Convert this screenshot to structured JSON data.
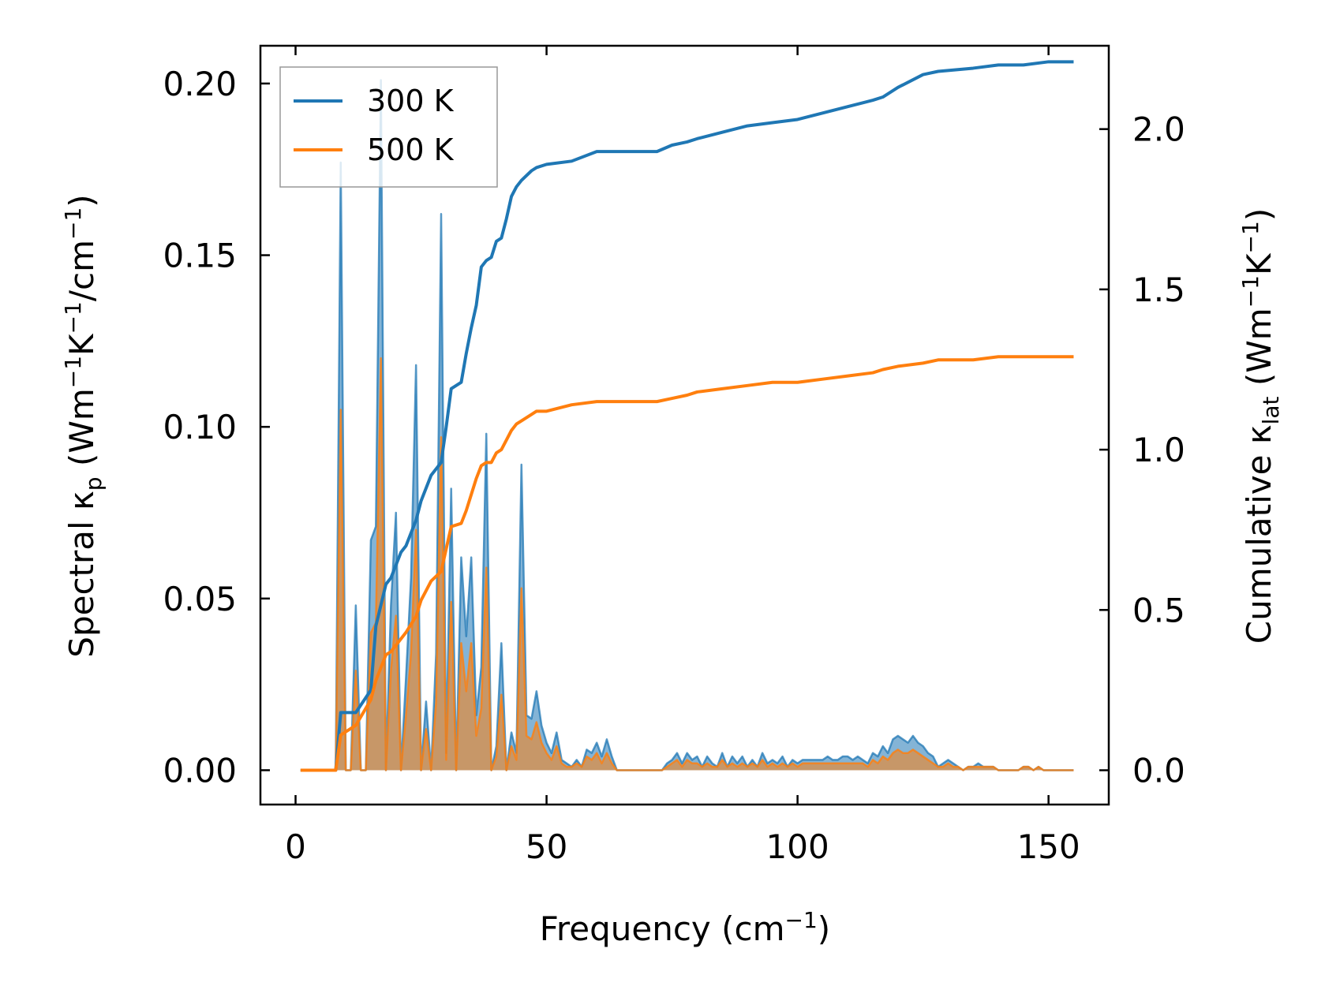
{
  "chart_data": {
    "type": "line",
    "xlabel_main": "Frequency (cm",
    "xlabel_sup": "−1",
    "xlabel_tail": ")",
    "ylabel_left": {
      "p1": "Spectral κ",
      "sub": "p",
      "p2": " (Wm",
      "sup1": "−1",
      "p3": "K",
      "sup2": "−1",
      "p4": "/cm",
      "sup3": "−1",
      "p5": ")"
    },
    "ylabel_right": {
      "p1": "Cumulative κ",
      "sub": "lat",
      "p2": " (Wm",
      "sup1": "−1",
      "p3": "K",
      "sup2": "−1",
      "p4": ")"
    },
    "xlim": [
      -7,
      162
    ],
    "ylim_left": [
      -0.01,
      0.211
    ],
    "ylim_right": [
      -0.107,
      2.26
    ],
    "x_ticks": [
      0,
      50,
      100,
      150
    ],
    "x_tick_labels": [
      "0",
      "50",
      "100",
      "150"
    ],
    "y_left_ticks": [
      0.0,
      0.05,
      0.1,
      0.15,
      0.2
    ],
    "y_left_tick_labels": [
      "0.00",
      "0.05",
      "0.10",
      "0.15",
      "0.20"
    ],
    "y_right_ticks": [
      0.0,
      0.5,
      1.0,
      1.5,
      2.0
    ],
    "y_right_tick_labels": [
      "0.0",
      "0.5",
      "1.0",
      "1.5",
      "2.0"
    ],
    "legend": {
      "position": "upper-left",
      "entries": [
        {
          "label": "300 K",
          "color": "#1f77b4"
        },
        {
          "label": "500 K",
          "color": "#ff7f0e"
        }
      ]
    },
    "spectral": {
      "x": [
        1,
        8,
        9,
        10,
        11,
        12,
        13,
        14,
        15,
        16,
        17,
        18,
        19,
        20,
        21,
        22,
        23,
        24,
        25,
        26,
        27,
        28,
        29,
        30,
        31,
        32,
        33,
        34,
        35,
        36,
        37,
        38,
        39,
        40,
        41,
        42,
        43,
        44,
        45,
        46,
        47,
        48,
        49,
        50,
        51,
        52,
        53,
        54,
        55,
        56,
        57,
        58,
        59,
        60,
        61,
        62,
        63,
        64,
        65,
        72,
        73,
        74,
        75,
        76,
        77,
        78,
        79,
        80,
        81,
        82,
        83,
        84,
        85,
        86,
        87,
        88,
        89,
        90,
        91,
        92,
        93,
        94,
        95,
        96,
        97,
        98,
        99,
        100,
        101,
        102,
        103,
        104,
        105,
        106,
        107,
        108,
        109,
        110,
        111,
        112,
        113,
        114,
        115,
        116,
        117,
        118,
        119,
        120,
        121,
        122,
        123,
        124,
        125,
        126,
        127,
        128,
        129,
        130,
        131,
        132,
        133,
        134,
        135,
        136,
        137,
        138,
        139,
        140,
        141,
        142,
        143,
        144,
        145,
        146,
        147,
        148,
        149,
        150,
        151,
        152,
        153,
        154,
        155
      ],
      "k300": [
        0.0,
        0.0,
        0.177,
        0.0,
        0.0,
        0.048,
        0.0,
        0.0,
        0.067,
        0.071,
        0.201,
        0.0,
        0.048,
        0.075,
        0.0,
        0.027,
        0.056,
        0.118,
        0.0,
        0.02,
        0.0,
        0.034,
        0.162,
        0.005,
        0.082,
        0.0,
        0.062,
        0.039,
        0.062,
        0.016,
        0.03,
        0.098,
        0.0,
        0.007,
        0.037,
        0.0,
        0.011,
        0.005,
        0.089,
        0.016,
        0.015,
        0.023,
        0.013,
        0.008,
        0.005,
        0.011,
        0.003,
        0.002,
        0.001,
        0.003,
        0.001,
        0.006,
        0.005,
        0.008,
        0.004,
        0.009,
        0.004,
        0.0,
        0.0,
        0.0,
        0.0,
        0.002,
        0.003,
        0.005,
        0.002,
        0.005,
        0.003,
        0.004,
        0.001,
        0.004,
        0.002,
        0.001,
        0.005,
        0.001,
        0.004,
        0.002,
        0.004,
        0.001,
        0.003,
        0.001,
        0.005,
        0.002,
        0.003,
        0.002,
        0.004,
        0.001,
        0.003,
        0.002,
        0.003,
        0.003,
        0.003,
        0.003,
        0.003,
        0.004,
        0.003,
        0.003,
        0.004,
        0.004,
        0.003,
        0.004,
        0.003,
        0.002,
        0.005,
        0.004,
        0.007,
        0.005,
        0.009,
        0.01,
        0.009,
        0.008,
        0.01,
        0.008,
        0.007,
        0.005,
        0.004,
        0.001,
        0.002,
        0.003,
        0.002,
        0.001,
        0.0,
        0.001,
        0.001,
        0.002,
        0.001,
        0.001,
        0.001,
        0.0,
        0.0,
        0.0,
        0.0,
        0.0,
        0.001,
        0.001,
        0.0,
        0.001,
        0.0,
        0.0,
        0.0,
        0.0,
        0.0,
        0.0,
        0.0
      ],
      "k500": [
        0.0,
        0.0,
        0.105,
        0.0,
        0.0,
        0.029,
        0.0,
        0.0,
        0.04,
        0.043,
        0.12,
        0.0,
        0.029,
        0.045,
        0.0,
        0.016,
        0.034,
        0.07,
        0.0,
        0.012,
        0.0,
        0.02,
        0.097,
        0.003,
        0.049,
        0.0,
        0.037,
        0.023,
        0.037,
        0.01,
        0.018,
        0.059,
        0.0,
        0.004,
        0.022,
        0.0,
        0.007,
        0.003,
        0.053,
        0.01,
        0.009,
        0.014,
        0.008,
        0.005,
        0.003,
        0.007,
        0.002,
        0.001,
        0.001,
        0.002,
        0.001,
        0.004,
        0.003,
        0.005,
        0.002,
        0.005,
        0.002,
        0.0,
        0.0,
        0.0,
        0.0,
        0.001,
        0.002,
        0.003,
        0.001,
        0.003,
        0.002,
        0.002,
        0.001,
        0.002,
        0.001,
        0.001,
        0.003,
        0.001,
        0.002,
        0.001,
        0.002,
        0.001,
        0.002,
        0.001,
        0.003,
        0.001,
        0.002,
        0.001,
        0.002,
        0.001,
        0.002,
        0.001,
        0.002,
        0.002,
        0.002,
        0.002,
        0.002,
        0.002,
        0.002,
        0.002,
        0.002,
        0.002,
        0.002,
        0.002,
        0.002,
        0.001,
        0.003,
        0.002,
        0.004,
        0.003,
        0.005,
        0.006,
        0.005,
        0.005,
        0.006,
        0.005,
        0.004,
        0.003,
        0.002,
        0.001,
        0.001,
        0.002,
        0.001,
        0.001,
        0.0,
        0.001,
        0.001,
        0.001,
        0.001,
        0.001,
        0.001,
        0.0,
        0.0,
        0.0,
        0.0,
        0.0,
        0.001,
        0.001,
        0.0,
        0.001,
        0.0,
        0.0,
        0.0,
        0.0,
        0.0,
        0.0,
        0.0
      ]
    },
    "cumulative": {
      "x300": [
        1,
        8,
        9,
        12,
        15,
        16,
        18,
        19,
        20,
        21,
        22,
        24,
        25,
        26,
        27,
        29,
        30,
        31,
        33,
        34,
        35,
        36,
        37,
        38,
        39,
        40,
        41,
        42,
        43,
        44,
        45,
        47,
        48,
        50,
        55,
        60,
        63,
        72,
        75,
        78,
        80,
        85,
        90,
        95,
        100,
        105,
        110,
        115,
        117,
        120,
        125,
        128,
        135,
        140,
        145,
        150,
        155
      ],
      "y300": [
        0.0,
        0.0,
        0.18,
        0.18,
        0.25,
        0.45,
        0.58,
        0.6,
        0.64,
        0.68,
        0.7,
        0.78,
        0.84,
        0.88,
        0.92,
        0.96,
        1.07,
        1.19,
        1.21,
        1.3,
        1.38,
        1.45,
        1.57,
        1.59,
        1.6,
        1.65,
        1.66,
        1.72,
        1.79,
        1.82,
        1.84,
        1.87,
        1.88,
        1.89,
        1.9,
        1.93,
        1.93,
        1.93,
        1.95,
        1.96,
        1.97,
        1.99,
        2.01,
        2.02,
        2.03,
        2.05,
        2.07,
        2.09,
        2.1,
        2.13,
        2.17,
        2.18,
        2.19,
        2.2,
        2.2,
        2.21,
        2.21
      ],
      "x500": [
        1,
        8,
        9,
        12,
        15,
        16,
        18,
        19,
        20,
        21,
        22,
        24,
        25,
        26,
        27,
        29,
        30,
        31,
        33,
        34,
        35,
        36,
        37,
        38,
        39,
        40,
        41,
        42,
        43,
        44,
        45,
        47,
        48,
        50,
        55,
        60,
        63,
        72,
        75,
        78,
        80,
        85,
        90,
        95,
        100,
        105,
        110,
        115,
        117,
        120,
        125,
        128,
        135,
        140,
        145,
        150,
        155
      ],
      "y500": [
        0.0,
        0.0,
        0.11,
        0.14,
        0.22,
        0.28,
        0.36,
        0.37,
        0.39,
        0.41,
        0.43,
        0.48,
        0.53,
        0.56,
        0.59,
        0.62,
        0.69,
        0.76,
        0.77,
        0.81,
        0.86,
        0.91,
        0.95,
        0.96,
        0.96,
        0.99,
        1.0,
        1.03,
        1.06,
        1.08,
        1.09,
        1.11,
        1.12,
        1.12,
        1.14,
        1.15,
        1.15,
        1.15,
        1.16,
        1.17,
        1.18,
        1.19,
        1.2,
        1.21,
        1.21,
        1.22,
        1.23,
        1.24,
        1.25,
        1.26,
        1.27,
        1.28,
        1.28,
        1.29,
        1.29,
        1.29,
        1.29
      ]
    }
  }
}
